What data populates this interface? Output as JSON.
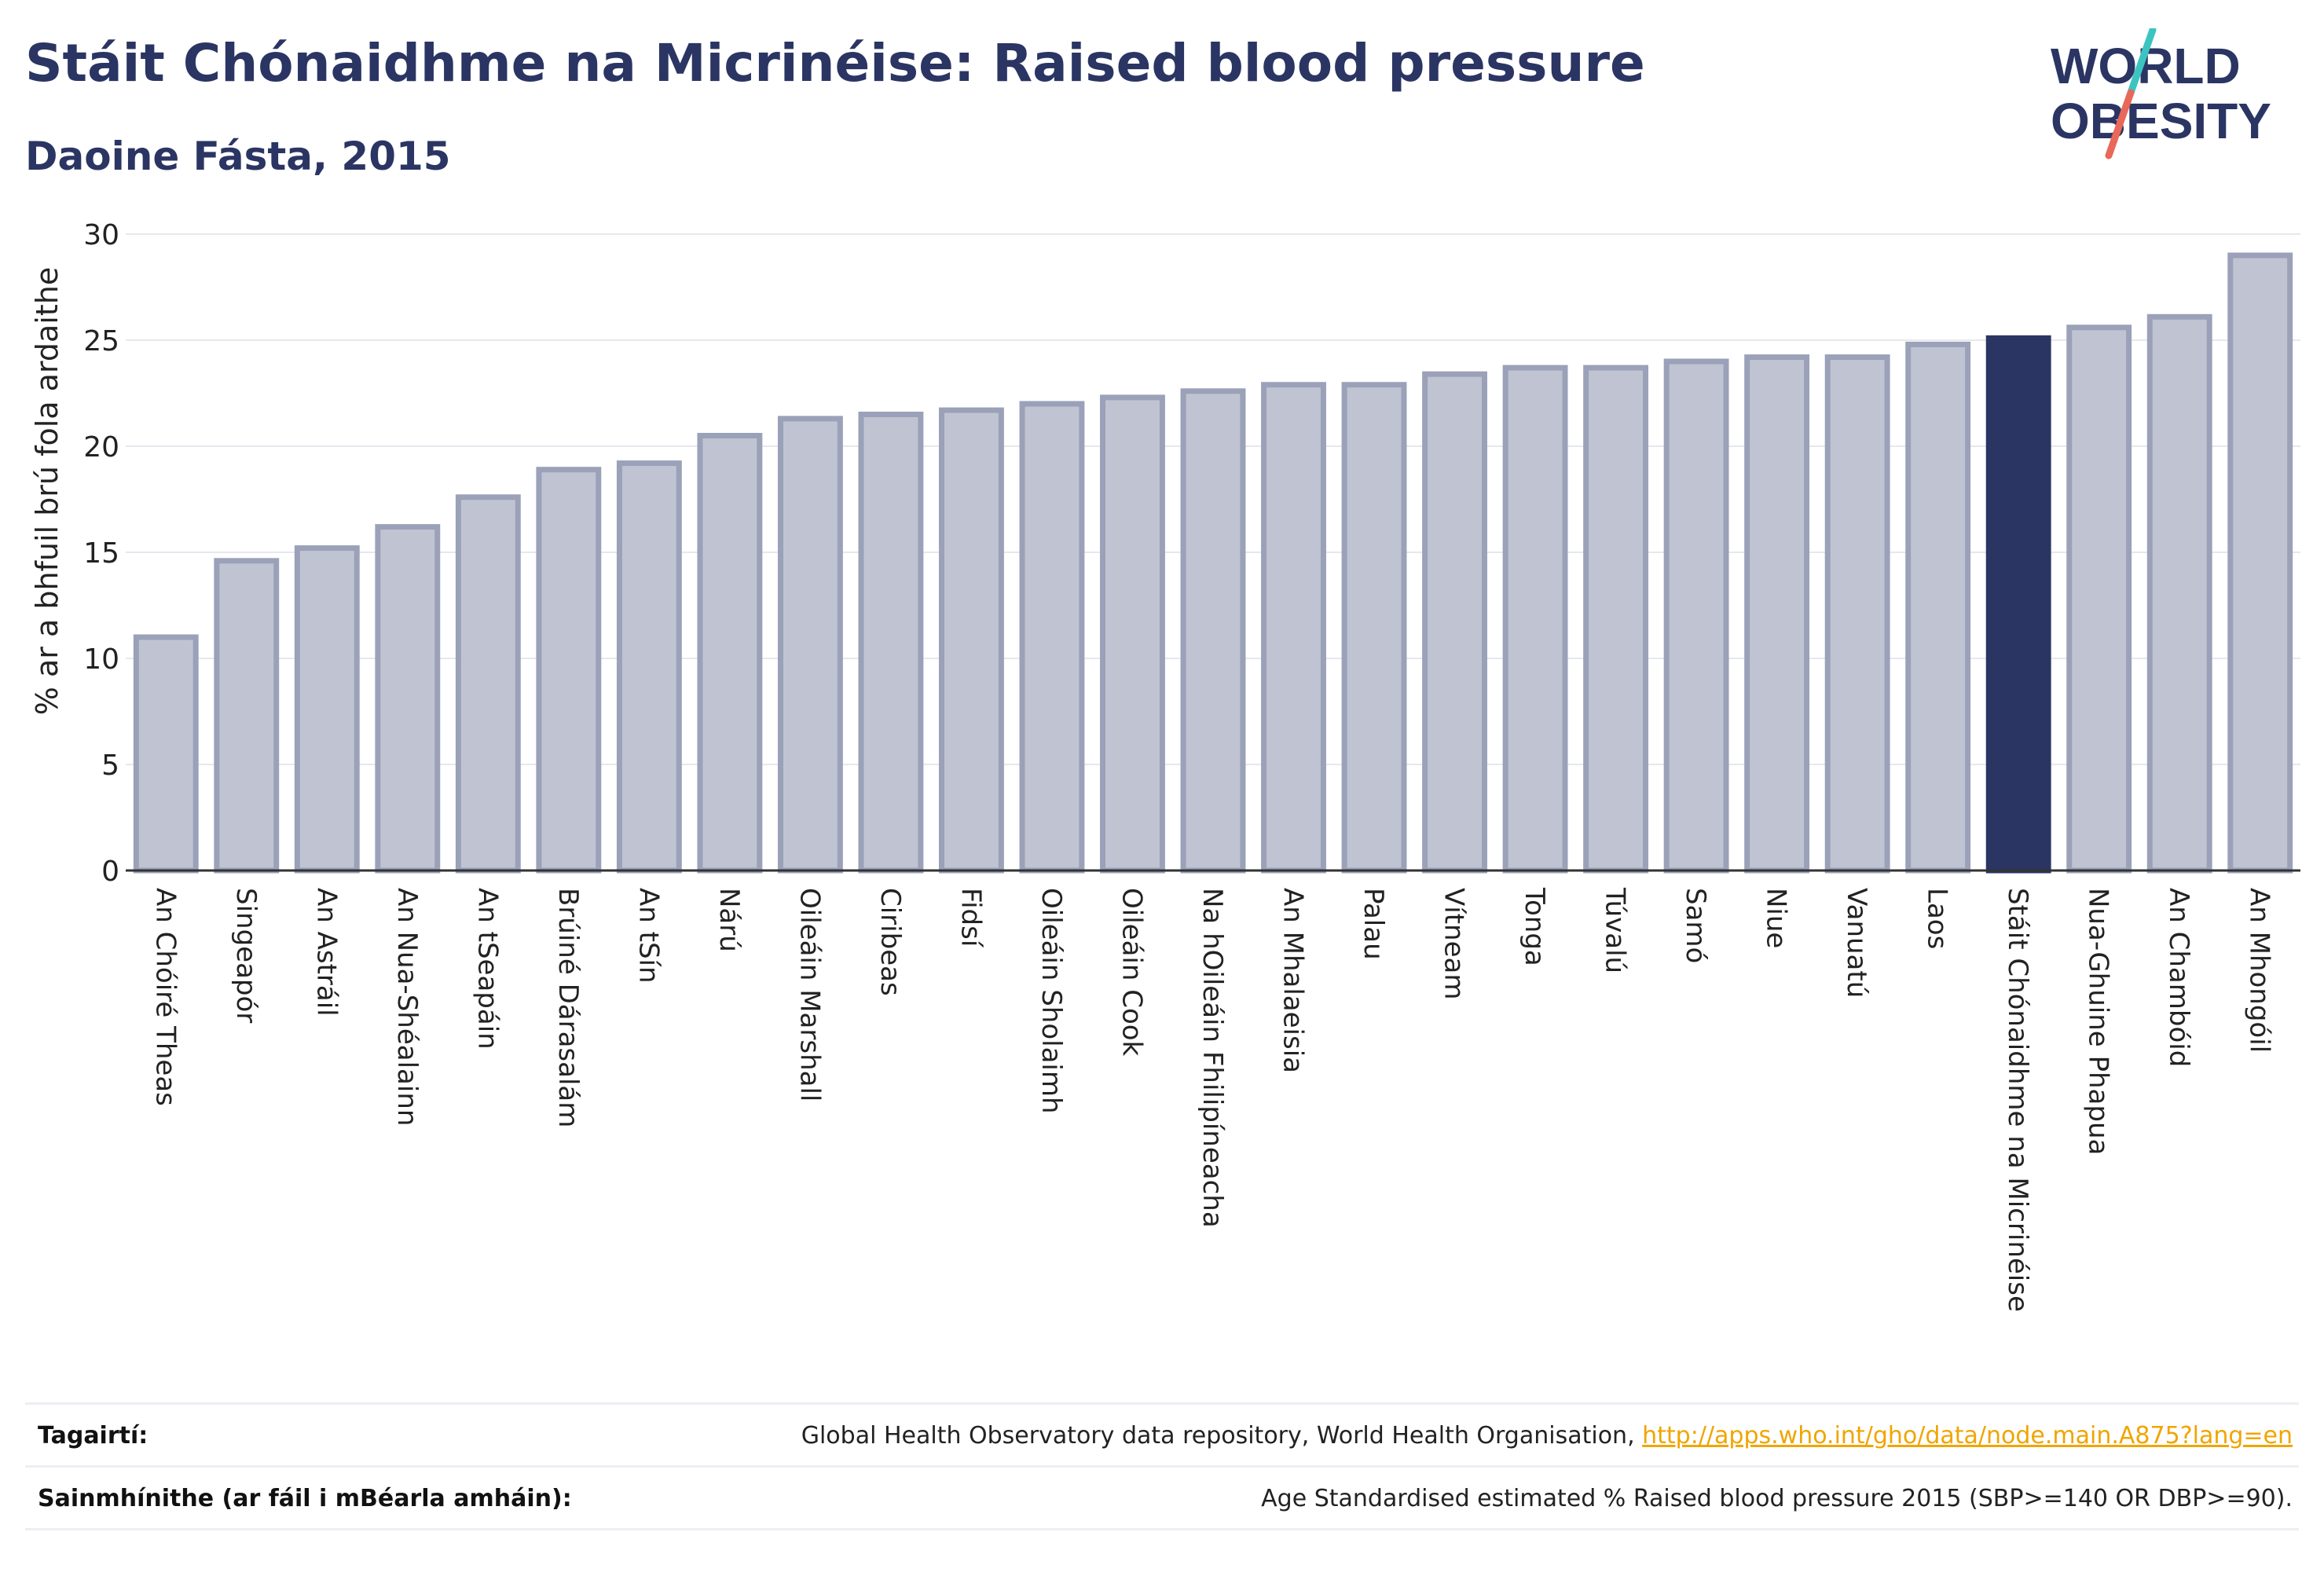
{
  "header": {
    "title": "Stáit Chónaidhme na Micrinéise: Raised blood pressure",
    "subtitle": "Daoine Fásta, 2015"
  },
  "logo": {
    "line1": "WORLD",
    "line2": "OBESITY",
    "colors": {
      "text": "#2b3563",
      "slash_top": "#3cc5c0",
      "slash_bottom": "#e8685a"
    }
  },
  "colors": {
    "bar": "#c0c4d2",
    "bar_stroke": "#9aa1b8",
    "highlight": "#2b3563",
    "grid": "#e6e8ee",
    "axis": "#333333"
  },
  "chart_data": {
    "type": "bar",
    "ylabel": "% ar a bhfuil brú fola ardaithe",
    "ylim": [
      0,
      30
    ],
    "yticks": [
      0,
      5,
      10,
      15,
      20,
      25,
      30
    ],
    "grid": true,
    "highlight": "Stáit Chónaidhme na Micrinéise",
    "categories": [
      "An Chóiré Theas",
      "Singeapór",
      "An Astráil",
      "An Nua-Shéalainn",
      "An tSeapáin",
      "Brúiné Dárasalám",
      "An tSín",
      "Nárú",
      "Oileáin Marshall",
      "Ciribeas",
      "Fidsí",
      "Oileáin Sholaimh",
      "Oileáin Cook",
      "Na hOileáin Fhilipíneacha",
      "An Mhalaeisia",
      "Palau",
      "Vítneam",
      "Tonga",
      "Túvalú",
      "Samó",
      "Niue",
      "Vanuatú",
      "Laos",
      "Stáit Chónaidhme na Micrinéise",
      "Nua-Ghuine Phapua",
      "An Chambóid",
      "An Mhongóil"
    ],
    "values": [
      11.0,
      14.6,
      15.2,
      16.2,
      17.6,
      18.9,
      19.2,
      20.5,
      21.3,
      21.5,
      21.7,
      22.0,
      22.3,
      22.6,
      22.9,
      22.9,
      23.4,
      23.7,
      23.7,
      24.0,
      24.2,
      24.2,
      24.8,
      25.1,
      25.6,
      26.1,
      29.0
    ]
  },
  "footer": {
    "references_label": "Tagairtí:",
    "references_text": "Global Health Observatory data repository, World Health Organisation, ",
    "references_link": "http://apps.who.int/gho/data/node.main.A875?lang=en",
    "definitions_label": "Sainmhínithe (ar fáil i mBéarla amháin):",
    "definitions_text": "Age Standardised estimated % Raised blood pressure 2015 (SBP>=140 OR DBP>=90)."
  }
}
